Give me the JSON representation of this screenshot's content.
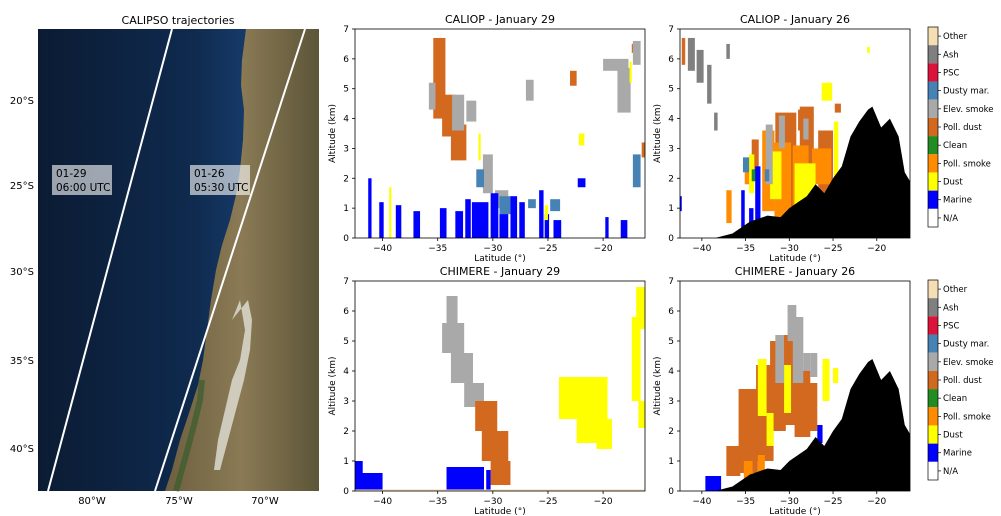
{
  "map": {
    "title": "CALIPSO trajectories",
    "lat_labels": [
      "20°S",
      "25°S",
      "30°S",
      "35°S",
      "40°S"
    ],
    "lon_labels": [
      "80°W",
      "75°W",
      "70°W"
    ],
    "tracks": [
      {
        "date": "01-29",
        "time": "06:00 UTC"
      },
      {
        "date": "01-26",
        "time": "05:30 UTC"
      }
    ]
  },
  "legend": {
    "entries": [
      "Other",
      "Ash",
      "PSC",
      "Dusty mar.",
      "Elev. smoke",
      "Poll. dust",
      "Clean",
      "Poll. smoke",
      "Dust",
      "Marine",
      "N/A"
    ],
    "colors": {
      "Other": "#f5deb3",
      "Ash": "#808080",
      "PSC": "#dc143c",
      "Dusty mar.": "#4682b4",
      "Elev. smoke": "#a9a9a9",
      "Poll. dust": "#d2691e",
      "Clean": "#228b22",
      "Poll. smoke": "#ff8c00",
      "Dust": "#ffff00",
      "Marine": "#0000ff",
      "N/A": "#ffffff"
    }
  },
  "chart_data": [
    {
      "type": "heatmap",
      "title": "CALIOP - January 29",
      "xlabel": "Latitude (°)",
      "ylabel": "Altitude (km)",
      "xlim": [
        -42.5,
        -16.2
      ],
      "ylim": [
        0,
        7
      ],
      "xticks": [
        -40,
        -35,
        -30,
        -25,
        -20
      ],
      "yticks": [
        0,
        1,
        2,
        3,
        4,
        5,
        6,
        7
      ],
      "regions": [
        {
          "class": "Poll. dust",
          "cells": [
            [
              -35.4,
              4.0,
              -34.3,
              6.7
            ],
            [
              -34.6,
              3.4,
              -33.4,
              4.8
            ],
            [
              -33.8,
              2.6,
              -32.4,
              3.8
            ],
            [
              -23.0,
              5.1,
              -22.4,
              5.6
            ],
            [
              -17.4,
              6.2,
              -16.8,
              6.5
            ],
            [
              -16.5,
              2.7,
              -16.2,
              3.2
            ]
          ]
        },
        {
          "class": "Elev. smoke",
          "cells": [
            [
              -35.8,
              4.3,
              -35.2,
              5.2
            ],
            [
              -33.7,
              3.6,
              -32.6,
              4.8
            ],
            [
              -32.4,
              3.9,
              -31.5,
              4.6
            ],
            [
              -30.9,
              1.5,
              -30.0,
              2.8
            ],
            [
              -29.8,
              1.0,
              -28.6,
              1.6
            ],
            [
              -27.0,
              4.6,
              -26.3,
              5.3
            ],
            [
              -20.0,
              5.6,
              -17.7,
              6.0
            ],
            [
              -18.7,
              4.2,
              -17.5,
              5.7
            ],
            [
              -17.3,
              5.8,
              -16.6,
              6.6
            ]
          ]
        },
        {
          "class": "Dusty mar.",
          "cells": [
            [
              -31.5,
              1.7,
              -30.8,
              2.3
            ],
            [
              -29.4,
              0.8,
              -28.4,
              1.4
            ],
            [
              -26.8,
              1.0,
              -26.1,
              1.3
            ],
            [
              -24.8,
              0.9,
              -23.9,
              1.3
            ],
            [
              -17.3,
              1.7,
              -16.6,
              2.8
            ]
          ]
        },
        {
          "class": "Marine",
          "cells": [
            [
              -41.3,
              0.0,
              -41.0,
              2.0
            ],
            [
              -40.3,
              0.0,
              -39.9,
              1.2
            ],
            [
              -38.8,
              0.0,
              -38.3,
              1.1
            ],
            [
              -37.2,
              0.0,
              -36.6,
              0.9
            ],
            [
              -34.8,
              0.0,
              -34.2,
              1.0
            ],
            [
              -33.4,
              0.0,
              -32.7,
              0.9
            ],
            [
              -32.5,
              0.0,
              -32.0,
              1.3
            ],
            [
              -31.9,
              0.0,
              -30.4,
              1.2
            ],
            [
              -30.2,
              0.0,
              -29.5,
              1.5
            ],
            [
              -29.4,
              0.0,
              -28.6,
              0.8
            ],
            [
              -28.4,
              0.0,
              -27.8,
              1.4
            ],
            [
              -27.6,
              0.0,
              -27.1,
              1.2
            ],
            [
              -25.8,
              0.0,
              -25.4,
              1.6
            ],
            [
              -25.3,
              0.0,
              -24.9,
              0.8
            ],
            [
              -24.5,
              0.0,
              -23.8,
              0.6
            ],
            [
              -22.3,
              1.7,
              -21.6,
              2.0
            ],
            [
              -19.8,
              0.0,
              -19.5,
              0.7
            ],
            [
              -18.4,
              0.0,
              -17.8,
              0.6
            ]
          ]
        },
        {
          "class": "Dust",
          "cells": [
            [
              -39.4,
              0.0,
              -39.2,
              1.7
            ],
            [
              -31.3,
              2.6,
              -31.1,
              3.5
            ],
            [
              -25.3,
              0.6,
              -25.0,
              1.1
            ],
            [
              -22.2,
              3.1,
              -21.7,
              3.5
            ],
            [
              -17.6,
              5.2,
              -17.4,
              5.9
            ]
          ]
        }
      ]
    },
    {
      "type": "heatmap",
      "title": "CALIOP - January 26",
      "xlabel": "Latitude (°)",
      "ylabel": "Altitude (km)",
      "xlim": [
        -42.5,
        -16.2
      ],
      "ylim": [
        0,
        7
      ],
      "xticks": [
        -40,
        -35,
        -30,
        -25,
        -20
      ],
      "yticks": [
        0,
        1,
        2,
        3,
        4,
        5,
        6,
        7
      ],
      "regions": [
        {
          "class": "Ash",
          "cells": [
            [
              -41.6,
              5.6,
              -40.8,
              6.7
            ],
            [
              -40.6,
              5.2,
              -39.8,
              6.3
            ],
            [
              -39.4,
              4.5,
              -38.9,
              5.8
            ],
            [
              -37.2,
              6.0,
              -36.8,
              6.5
            ],
            [
              -38.6,
              3.6,
              -38.2,
              4.2
            ]
          ]
        },
        {
          "class": "Poll. dust",
          "cells": [
            [
              -42.3,
              5.8,
              -41.9,
              6.7
            ],
            [
              -34.3,
              2.0,
              -33.5,
              3.3
            ],
            [
              -31.6,
              0.3,
              -29.2,
              4.2
            ],
            [
              -29.0,
              3.6,
              -28.2,
              4.3
            ],
            [
              -28.8,
              1.5,
              -27.2,
              4.4
            ],
            [
              -26.7,
              1.3,
              -25.0,
              3.6
            ],
            [
              -24.8,
              4.2,
              -24.1,
              4.5
            ]
          ]
        },
        {
          "class": "Poll. smoke",
          "cells": [
            [
              -37.2,
              0.5,
              -36.6,
              1.6
            ],
            [
              -35.1,
              1.8,
              -34.2,
              2.7
            ],
            [
              -33.1,
              0.9,
              -31.7,
              3.6
            ],
            [
              -31.7,
              0.2,
              -29.8,
              3.2
            ],
            [
              -29.6,
              0.9,
              -27.8,
              3.1
            ],
            [
              -27.4,
              1.8,
              -25.2,
              3.0
            ]
          ]
        },
        {
          "class": "Dust",
          "cells": [
            [
              -34.6,
              1.5,
              -34.0,
              2.8
            ],
            [
              -32.2,
              1.3,
              -30.9,
              2.9
            ],
            [
              -29.4,
              0.9,
              -27.0,
              2.5
            ],
            [
              -26.3,
              4.6,
              -25.1,
              5.2
            ],
            [
              -24.9,
              1.6,
              -24.4,
              3.9
            ],
            [
              -21.1,
              6.2,
              -20.8,
              6.4
            ]
          ]
        },
        {
          "class": "Elev. smoke",
          "cells": [
            [
              -32.7,
              1.8,
              -31.9,
              3.8
            ],
            [
              -31.2,
              3.0,
              -30.5,
              4.1
            ],
            [
              -28.4,
              3.3,
              -27.8,
              4.0
            ]
          ]
        },
        {
          "class": "Dusty mar.",
          "cells": [
            [
              -35.3,
              2.2,
              -34.6,
              2.7
            ],
            [
              -32.8,
              1.9,
              -32.3,
              2.3
            ]
          ]
        },
        {
          "class": "Clean",
          "cells": [
            [
              -34.3,
              1.9,
              -33.5,
              2.3
            ]
          ]
        },
        {
          "class": "Marine",
          "cells": [
            [
              -42.5,
              0.9,
              -42.3,
              1.4
            ],
            [
              -35.5,
              0.0,
              -35.1,
              1.6
            ],
            [
              -34.6,
              0.0,
              -34.1,
              1.0
            ],
            [
              -33.9,
              0.3,
              -33.3,
              2.4
            ]
          ]
        }
      ],
      "terrain_top_km": [
        [
          -38.5,
          0.0
        ],
        [
          -36.5,
          0.15
        ],
        [
          -34.5,
          0.55
        ],
        [
          -32.5,
          0.75
        ],
        [
          -31.0,
          0.7
        ],
        [
          -30.0,
          1.0
        ],
        [
          -29.0,
          1.2
        ],
        [
          -28.0,
          1.4
        ],
        [
          -27.0,
          1.8
        ],
        [
          -26.0,
          1.5
        ],
        [
          -25.0,
          2.0
        ],
        [
          -24.0,
          2.4
        ],
        [
          -23.0,
          3.4
        ],
        [
          -22.0,
          3.9
        ],
        [
          -21.0,
          4.3
        ],
        [
          -20.5,
          4.4
        ],
        [
          -19.5,
          3.7
        ],
        [
          -18.5,
          4.0
        ],
        [
          -17.5,
          3.4
        ],
        [
          -16.8,
          2.2
        ],
        [
          -16.2,
          1.9
        ]
      ]
    },
    {
      "type": "heatmap",
      "title": "CHIMERE - January 29",
      "xlabel": "Latitude (°)",
      "ylabel": "Altitude (km)",
      "xlim": [
        -42.5,
        -16.2
      ],
      "ylim": [
        0,
        7
      ],
      "xticks": [
        -40,
        -35,
        -30,
        -25,
        -20
      ],
      "yticks": [
        0,
        1,
        2,
        3,
        4,
        5,
        6,
        7
      ],
      "regions": [
        {
          "class": "Elev. smoke",
          "cells": [
            [
              -34.2,
              5.6,
              -33.2,
              6.5
            ],
            [
              -34.6,
              4.6,
              -32.6,
              5.6
            ],
            [
              -33.8,
              3.6,
              -31.8,
              4.6
            ],
            [
              -32.6,
              2.8,
              -30.8,
              3.6
            ]
          ]
        },
        {
          "class": "Poll. dust",
          "cells": [
            [
              -31.6,
              2.0,
              -29.6,
              3.0
            ],
            [
              -31.0,
              1.0,
              -28.6,
              2.0
            ],
            [
              -30.2,
              0.2,
              -28.4,
              1.0
            ]
          ]
        },
        {
          "class": "Marine",
          "cells": [
            [
              -42.5,
              0.5,
              -41.8,
              1.0
            ],
            [
              -42.5,
              0.0,
              -40.0,
              0.6
            ],
            [
              -34.2,
              0.0,
              -30.8,
              0.8
            ],
            [
              -30.6,
              0.0,
              -30.2,
              0.7
            ]
          ]
        },
        {
          "class": "Dust",
          "cells": [
            [
              -24.0,
              2.4,
              -21.0,
              3.8
            ],
            [
              -22.4,
              1.6,
              -19.6,
              3.8
            ],
            [
              -20.6,
              1.4,
              -19.2,
              2.4
            ],
            [
              -17.4,
              3.0,
              -16.6,
              5.8
            ],
            [
              -17.0,
              5.4,
              -16.2,
              6.8
            ],
            [
              -16.8,
              2.1,
              -16.2,
              3.0
            ]
          ]
        },
        {
          "class": "Other",
          "cells": [
            [
              -42.5,
              0.0,
              -16.2,
              0.05
            ]
          ]
        }
      ]
    },
    {
      "type": "heatmap",
      "title": "CHIMERE - January 26",
      "xlabel": "Latitude (°)",
      "ylabel": "Altitude (km)",
      "xlim": [
        -42.5,
        -16.2
      ],
      "ylim": [
        0,
        7
      ],
      "xticks": [
        -40,
        -35,
        -30,
        -25,
        -20
      ],
      "yticks": [
        0,
        1,
        2,
        3,
        4,
        5,
        6,
        7
      ],
      "regions": [
        {
          "class": "Poll. dust",
          "cells": [
            [
              -37.2,
              0.5,
              -35.6,
              1.5
            ],
            [
              -35.8,
              0.6,
              -33.6,
              3.4
            ],
            [
              -33.8,
              1.0,
              -31.8,
              4.2
            ],
            [
              -32.2,
              2.0,
              -30.4,
              5.0
            ],
            [
              -30.8,
              2.2,
              -28.6,
              5.2
            ],
            [
              -29.4,
              1.8,
              -27.6,
              4.0
            ],
            [
              -27.8,
              2.0,
              -26.8,
              3.6
            ]
          ]
        },
        {
          "class": "Dust",
          "cells": [
            [
              -33.6,
              2.5,
              -32.6,
              4.4
            ],
            [
              -32.6,
              1.5,
              -31.8,
              2.6
            ],
            [
              -30.6,
              2.6,
              -29.8,
              4.2
            ],
            [
              -26.2,
              3.0,
              -25.4,
              4.4
            ],
            [
              -25.0,
              3.6,
              -24.4,
              4.1
            ]
          ]
        },
        {
          "class": "Elev. smoke",
          "cells": [
            [
              -31.6,
              3.6,
              -30.6,
              5.2
            ],
            [
              -30.2,
              5.0,
              -29.2,
              6.2
            ],
            [
              -29.6,
              3.6,
              -28.4,
              5.8
            ],
            [
              -28.4,
              4.0,
              -27.6,
              4.6
            ],
            [
              -27.6,
              3.8,
              -26.8,
              4.6
            ]
          ]
        },
        {
          "class": "Poll. smoke",
          "cells": [
            [
              -35.2,
              0.3,
              -34.2,
              1.0
            ],
            [
              -33.6,
              0.4,
              -32.8,
              1.2
            ]
          ]
        },
        {
          "class": "Marine",
          "cells": [
            [
              -39.6,
              0.0,
              -37.8,
              0.5
            ],
            [
              -26.8,
              1.6,
              -26.2,
              2.2
            ]
          ]
        }
      ],
      "terrain_top_km": [
        [
          -38.5,
          0.0
        ],
        [
          -36.5,
          0.15
        ],
        [
          -34.5,
          0.55
        ],
        [
          -32.5,
          0.75
        ],
        [
          -31.0,
          0.7
        ],
        [
          -30.0,
          1.0
        ],
        [
          -29.0,
          1.2
        ],
        [
          -28.0,
          1.4
        ],
        [
          -27.0,
          1.8
        ],
        [
          -26.0,
          1.5
        ],
        [
          -25.0,
          2.0
        ],
        [
          -24.0,
          2.4
        ],
        [
          -23.0,
          3.4
        ],
        [
          -22.0,
          3.9
        ],
        [
          -21.0,
          4.3
        ],
        [
          -20.5,
          4.4
        ],
        [
          -19.5,
          3.7
        ],
        [
          -18.5,
          4.0
        ],
        [
          -17.5,
          3.4
        ],
        [
          -16.8,
          2.2
        ],
        [
          -16.2,
          1.9
        ]
      ]
    }
  ]
}
